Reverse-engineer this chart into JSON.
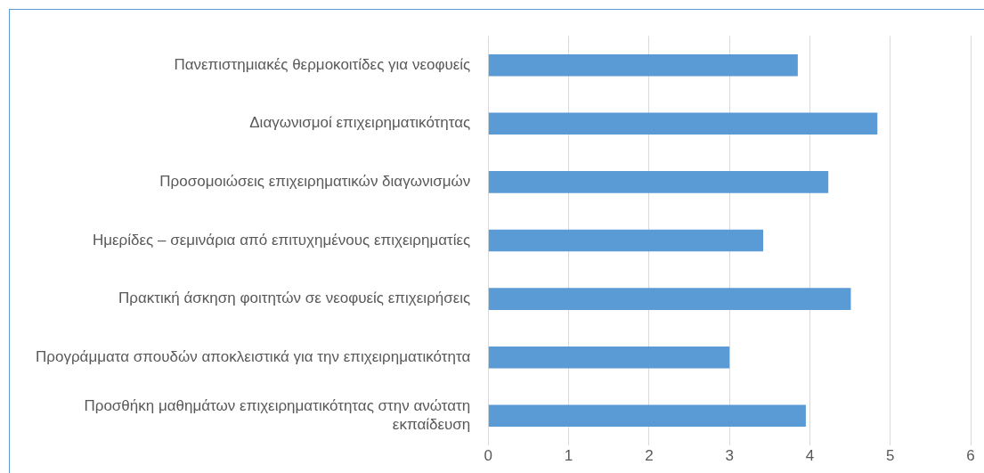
{
  "chart_data": {
    "type": "bar",
    "orientation": "horizontal",
    "categories": [
      "Πανεπιστημιακές θερμοκοιτίδες για νεοφυείς",
      "Διαγωνισμοί επιχειρηματικότητας",
      "Προσομοιώσεις επιχειρηματικών διαγωνισμών",
      "Ημερίδες – σεμινάρια από επιτυχημένους επιχειρηματίες",
      "Πρακτική άσκηση φοιτητών σε νεοφυείς επιχειρήσεις",
      "Προγράμματα σπουδών αποκλειστικά για την επιχειρηματικότητα",
      "Προσθήκη μαθημάτων επιχειρηματικότητας στην ανώτατη εκπαίδευση"
    ],
    "values": [
      3.85,
      4.84,
      4.23,
      3.42,
      4.51,
      3.0,
      3.95
    ],
    "color": "#5b9bd5",
    "xlim": [
      0,
      6
    ],
    "xticks": [
      0,
      1,
      2,
      3,
      4,
      5,
      6
    ],
    "grid": "x",
    "legend": false
  }
}
